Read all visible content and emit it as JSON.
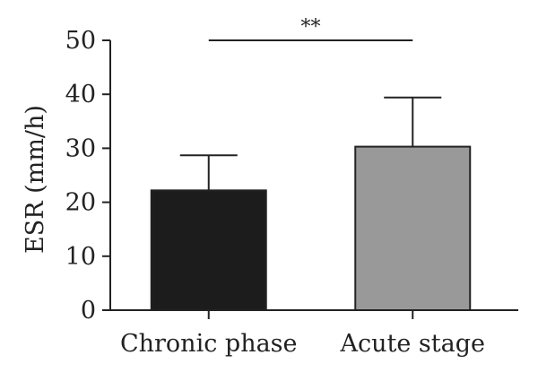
{
  "chart_data": {
    "type": "bar",
    "categories": [
      "Chronic phase",
      "Acute stage"
    ],
    "values": [
      22.2,
      30.3
    ],
    "error_upper": [
      28.7,
      39.4
    ],
    "colors": [
      "#1c1c1c",
      "#999999"
    ],
    "ylabel": "ESR (mm/h)",
    "ylim": [
      0,
      50
    ],
    "yticks": [
      "0",
      "10",
      "20",
      "30",
      "40",
      "50"
    ],
    "significance": "**"
  }
}
